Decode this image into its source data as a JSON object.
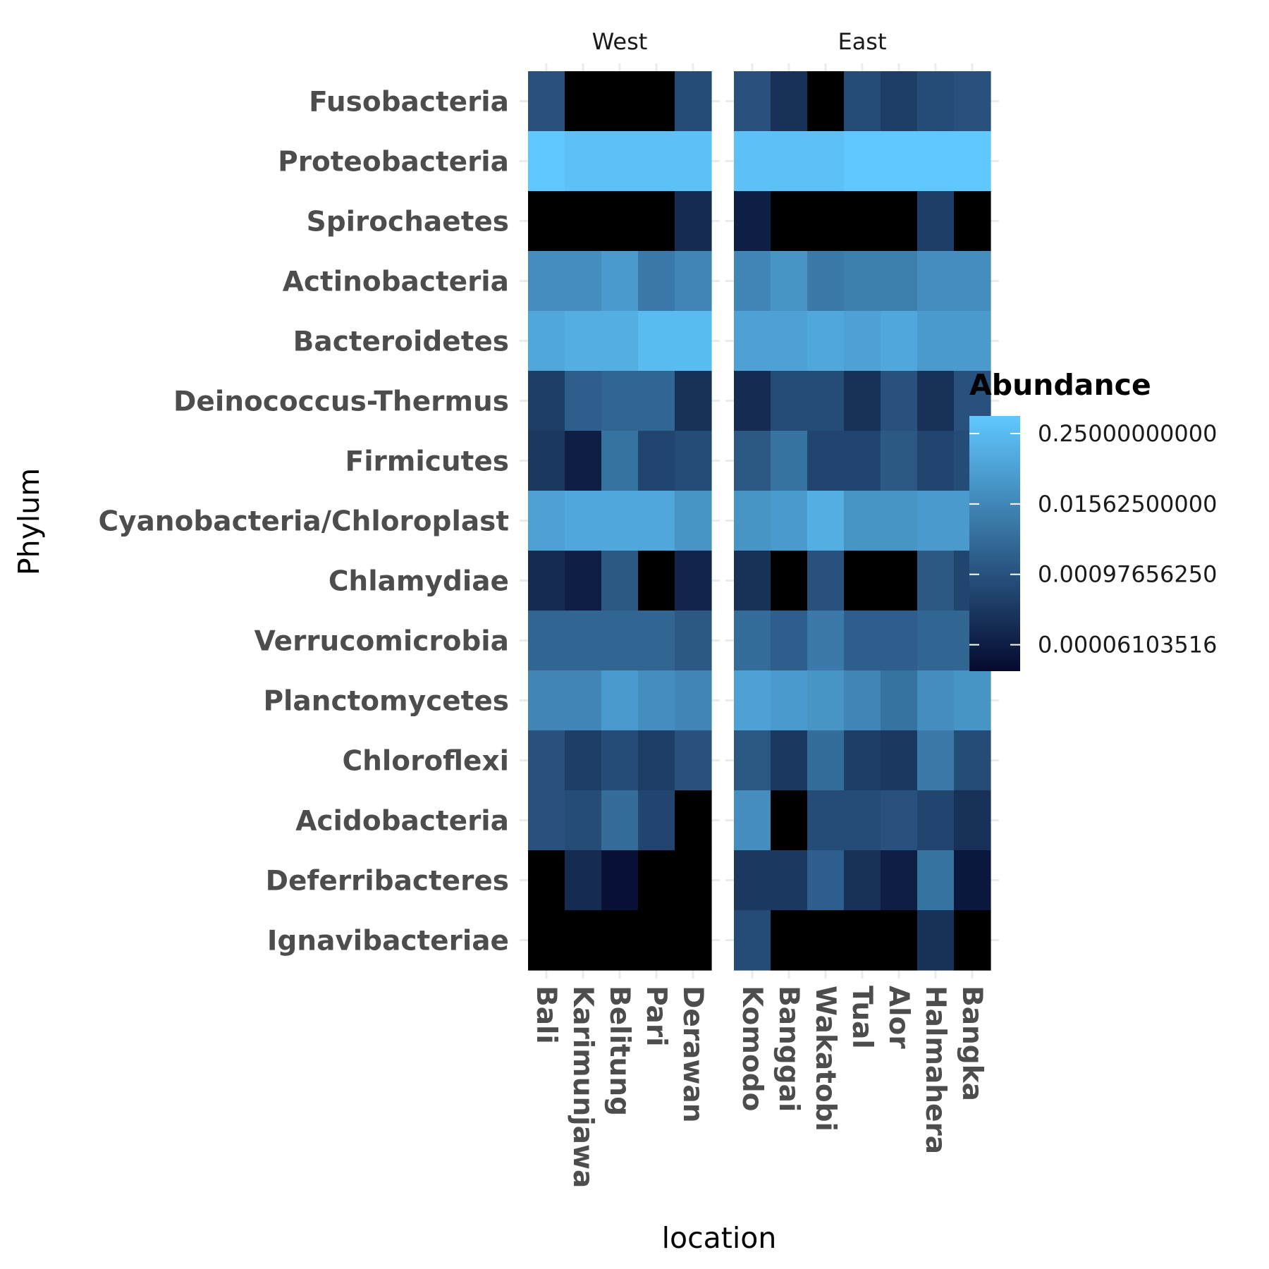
{
  "chart_data": {
    "type": "heatmap",
    "xlabel": "location",
    "ylabel": "Phylum",
    "facets": [
      {
        "name": "West",
        "locations": [
          "Bali",
          "Karimunjawa",
          "Belitung",
          "Pari",
          "Derawan"
        ]
      },
      {
        "name": "East",
        "locations": [
          "Komodo",
          "Banggai",
          "Wakatobi",
          "Tual",
          "Alor",
          "Halmahera",
          "Bangka"
        ]
      }
    ],
    "phyla": [
      "Fusobacteria",
      "Proteobacteria",
      "Spirochaetes",
      "Actinobacteria",
      "Bacteroidetes",
      "Deinococcus-Thermus",
      "Firmicutes",
      "Cyanobacteria/Chloroplast",
      "Chlamydiae",
      "Verrucomicrobia",
      "Planctomycetes",
      "Chloroflexi",
      "Acidobacteria",
      "Deferribacteres",
      "Ignavibacteriae"
    ],
    "values_log2": [
      [
        -10.0,
        null,
        null,
        null,
        -10.5,
        -10.0,
        -12.5,
        null,
        -10.5,
        -11.5,
        -10.5,
        -10.0
      ],
      [
        -1.0,
        -1.5,
        -1.5,
        -1.5,
        -1.5,
        -1.5,
        -1.5,
        -1.5,
        -1.0,
        -1.0,
        -1.0,
        -1.0
      ],
      [
        null,
        null,
        null,
        null,
        -13.0,
        -14.0,
        null,
        null,
        null,
        null,
        -11.5,
        null
      ],
      [
        -5.5,
        -5.5,
        -4.5,
        -7.0,
        -6.0,
        -6.0,
        -5.0,
        -7.0,
        -6.5,
        -6.5,
        -5.5,
        -5.5
      ],
      [
        -3.5,
        -3.0,
        -3.0,
        -2.0,
        -2.0,
        -4.0,
        -4.0,
        -3.5,
        -4.0,
        -3.5,
        -4.5,
        -4.5
      ],
      [
        -11.5,
        -9.0,
        -8.5,
        -8.5,
        -12.5,
        -13.0,
        -10.5,
        -10.5,
        -12.5,
        -10.0,
        -12.5,
        -10.0
      ],
      [
        -12.0,
        -14.0,
        -7.5,
        -11.0,
        -10.5,
        -9.5,
        -7.5,
        -11.0,
        -11.0,
        -9.5,
        -11.0,
        -10.5
      ],
      [
        -4.0,
        -3.5,
        -3.5,
        -3.5,
        -5.0,
        -5.0,
        -4.5,
        -3.0,
        -5.0,
        -5.0,
        -4.5,
        -4.5
      ],
      [
        -13.0,
        -14.0,
        -9.5,
        null,
        -13.5,
        -12.5,
        null,
        -10.0,
        null,
        null,
        -9.5,
        -11.0
      ],
      [
        -8.5,
        -8.5,
        -8.5,
        -8.5,
        -9.5,
        -8.0,
        -9.0,
        -7.0,
        -9.0,
        -9.0,
        -8.5,
        -8.5
      ],
      [
        -6.0,
        -6.0,
        -4.5,
        -5.5,
        -6.0,
        -4.0,
        -4.5,
        -5.0,
        -6.0,
        -7.5,
        -5.5,
        -5.0
      ],
      [
        -10.0,
        -11.5,
        -10.5,
        -11.5,
        -10.0,
        -9.5,
        -12.0,
        -8.0,
        -11.5,
        -12.0,
        -7.0,
        -10.5
      ],
      [
        -10.0,
        -10.5,
        -8.0,
        -11.0,
        null,
        -5.5,
        null,
        -10.5,
        -10.5,
        -10.0,
        -11.0,
        -12.5
      ],
      [
        null,
        -13.0,
        -15.0,
        null,
        null,
        -12.0,
        -12.0,
        -9.0,
        -12.5,
        -14.0,
        -7.5,
        -14.5
      ],
      [
        null,
        null,
        null,
        null,
        null,
        -10.5,
        null,
        null,
        null,
        null,
        -12.5,
        null
      ]
    ],
    "legend": {
      "title": "Abundance",
      "ticks": [
        "0.25000000000",
        "0.01562500000",
        "0.00097656250",
        "0.00006103516"
      ],
      "tick_values_log2": [
        -2,
        -6,
        -10,
        -14
      ],
      "range_log2": [
        -15.5,
        -1.0
      ],
      "low_color": "#050A2E",
      "high_color": "#60C8FF",
      "na_color": "#000000",
      "position": "right"
    },
    "grid": true
  }
}
